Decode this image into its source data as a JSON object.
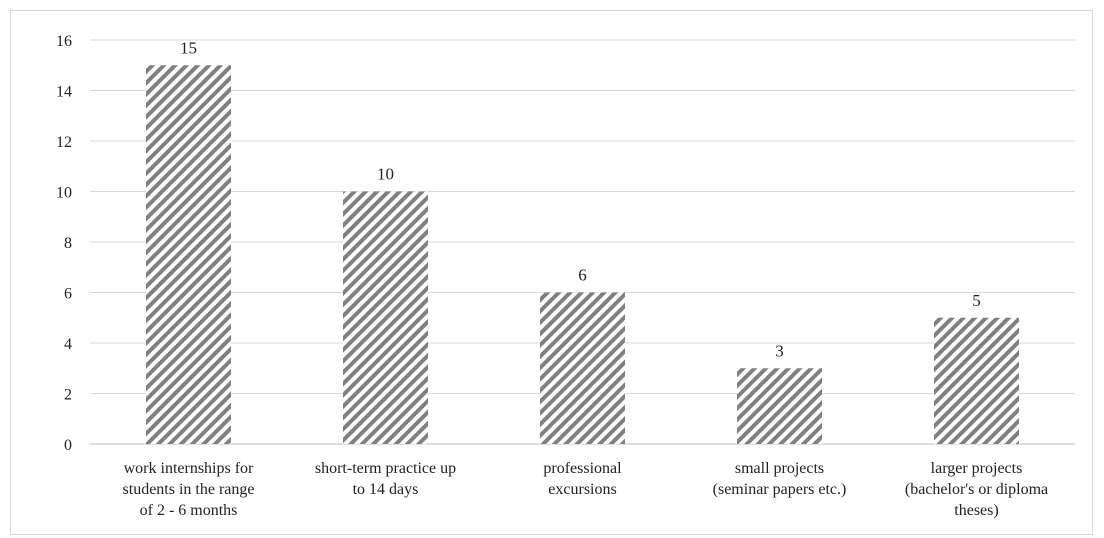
{
  "chart_data": {
    "type": "bar",
    "title": "",
    "xlabel": "",
    "ylabel": "",
    "ylim": [
      0,
      16
    ],
    "y_ticks": [
      "0",
      "2",
      "4",
      "6",
      "8",
      "10",
      "12",
      "14",
      "16"
    ],
    "grid": true,
    "legend": "none",
    "bar_fill": "diagonal-hatch",
    "colors": {
      "bar": "#808080",
      "grid": "#d9d9d9",
      "axis": "#bfbfbf",
      "text": "#222222"
    },
    "categories": [
      [
        "work internships for",
        "students in the range",
        "of 2 - 6 months"
      ],
      [
        "short-term practice up",
        "to 14 days"
      ],
      [
        "professional",
        "excursions"
      ],
      [
        "small projects",
        "(seminar papers etc.)"
      ],
      [
        "larger projects",
        "(bachelor's or diploma",
        "theses)"
      ]
    ],
    "values": [
      15,
      10,
      6,
      3,
      5
    ],
    "data_labels": [
      "15",
      "10",
      "6",
      "3",
      "5"
    ]
  }
}
